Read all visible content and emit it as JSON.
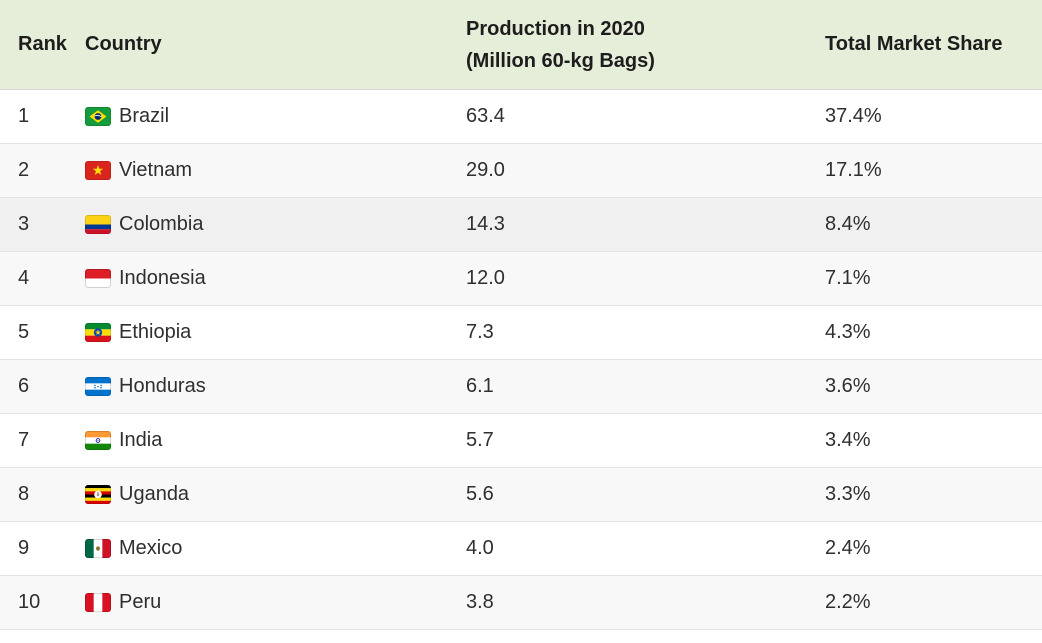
{
  "table": {
    "header": {
      "rank": "Rank",
      "country": "Country",
      "production_line1": "Production in 2020",
      "production_line2": "(Million 60-kg Bags)",
      "share": "Total Market Share"
    },
    "rows": [
      {
        "rank": "1",
        "country": "Brazil",
        "flag": "brazil",
        "production": "63.4",
        "share": "37.4%",
        "highlight": false
      },
      {
        "rank": "2",
        "country": "Vietnam",
        "flag": "vietnam",
        "production": "29.0",
        "share": "17.1%",
        "highlight": false
      },
      {
        "rank": "3",
        "country": "Colombia",
        "flag": "colombia",
        "production": "14.3",
        "share": "8.4%",
        "highlight": true
      },
      {
        "rank": "4",
        "country": "Indonesia",
        "flag": "indonesia",
        "production": "12.0",
        "share": "7.1%",
        "highlight": false
      },
      {
        "rank": "5",
        "country": "Ethiopia",
        "flag": "ethiopia",
        "production": "7.3",
        "share": "4.3%",
        "highlight": false
      },
      {
        "rank": "6",
        "country": "Honduras",
        "flag": "honduras",
        "production": "6.1",
        "share": "3.6%",
        "highlight": false
      },
      {
        "rank": "7",
        "country": "India",
        "flag": "india",
        "production": "5.7",
        "share": "3.4%",
        "highlight": false
      },
      {
        "rank": "8",
        "country": "Uganda",
        "flag": "uganda",
        "production": "5.6",
        "share": "3.3%",
        "highlight": false
      },
      {
        "rank": "9",
        "country": "Mexico",
        "flag": "mexico",
        "production": "4.0",
        "share": "2.4%",
        "highlight": false
      },
      {
        "rank": "10",
        "country": "Peru",
        "flag": "peru",
        "production": "3.8",
        "share": "2.2%",
        "highlight": false
      }
    ]
  },
  "colors": {
    "header_bg": "#e4eed9",
    "row_stripe_bg": "#f8f8f8",
    "row_highlight_bg": "#f0f0f0",
    "divider": "#e3e3e3",
    "text": "#2f2f2f"
  },
  "chart_data": {
    "type": "table",
    "columns": [
      "Rank",
      "Country",
      "Production in 2020 (Million 60-kg Bags)",
      "Total Market Share"
    ],
    "rows": [
      [
        1,
        "Brazil",
        63.4,
        "37.4%"
      ],
      [
        2,
        "Vietnam",
        29.0,
        "17.1%"
      ],
      [
        3,
        "Colombia",
        14.3,
        "8.4%"
      ],
      [
        4,
        "Indonesia",
        12.0,
        "7.1%"
      ],
      [
        5,
        "Ethiopia",
        7.3,
        "4.3%"
      ],
      [
        6,
        "Honduras",
        6.1,
        "3.6%"
      ],
      [
        7,
        "India",
        5.7,
        "3.4%"
      ],
      [
        8,
        "Uganda",
        5.6,
        "3.3%"
      ],
      [
        9,
        "Mexico",
        4.0,
        "2.4%"
      ],
      [
        10,
        "Peru",
        3.8,
        "2.2%"
      ]
    ]
  }
}
